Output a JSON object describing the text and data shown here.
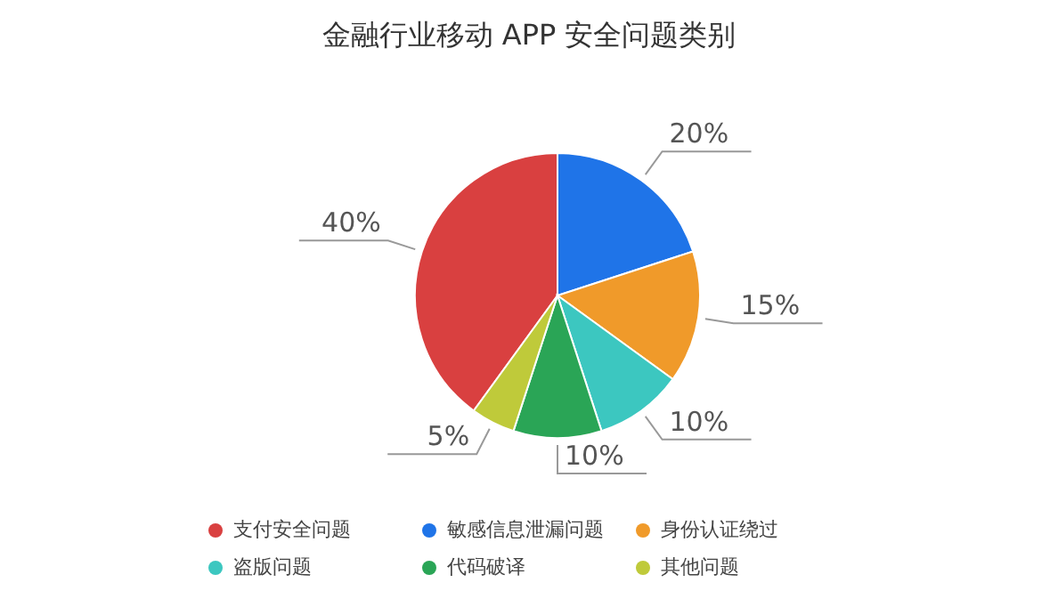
{
  "chart_data": {
    "type": "pie",
    "title": "金融行业移动 APP 安全问题类别",
    "categories": [
      "支付安全问题",
      "敏感信息泄漏问题",
      "身份认证绕过",
      "盗版问题",
      "代码破译",
      "其他问题"
    ],
    "values": [
      40,
      20,
      15,
      10,
      10,
      5
    ],
    "value_labels": [
      "40%",
      "20%",
      "15%",
      "10%",
      "10%",
      "5%"
    ],
    "colors": [
      "#d94040",
      "#1f74e8",
      "#f09a2a",
      "#3cc7c0",
      "#2aa556",
      "#bfca3a"
    ],
    "legend": "bottom"
  }
}
